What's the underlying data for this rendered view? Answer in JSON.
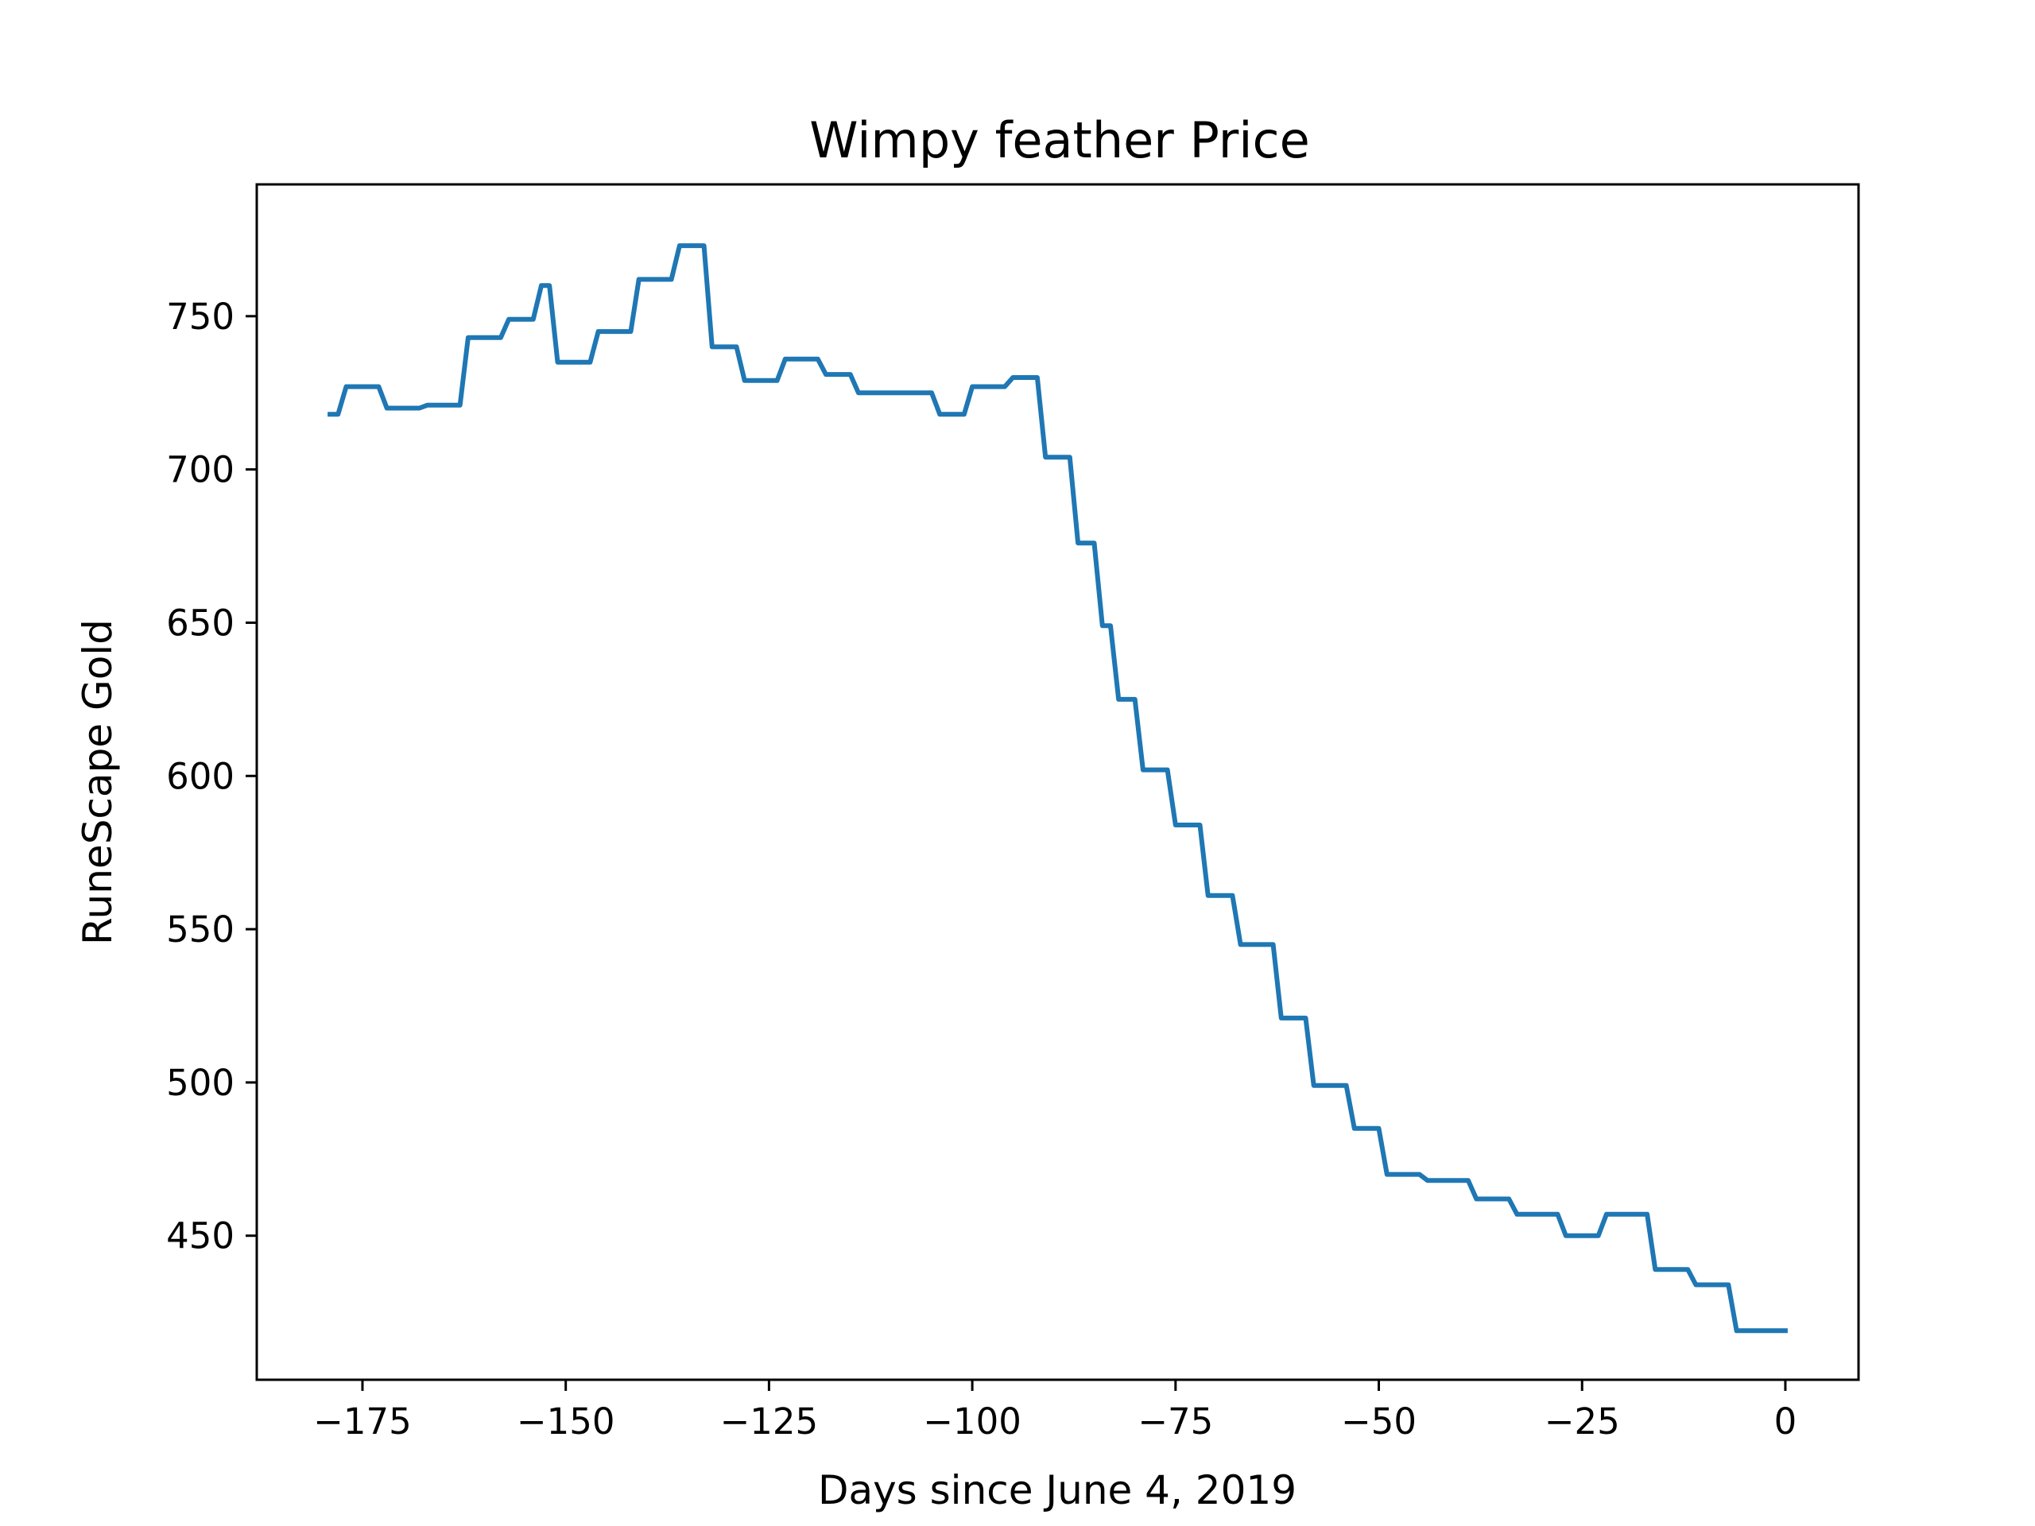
{
  "chart_data": {
    "type": "line",
    "title": "Wimpy feather Price",
    "xlabel": "Days since June 4, 2019",
    "ylabel": "RuneScape Gold",
    "xlim": [
      -188,
      9
    ],
    "ylim": [
      403,
      793
    ],
    "xticks": [
      -175,
      -150,
      -125,
      -100,
      -75,
      -50,
      -25,
      0
    ],
    "xtick_labels": [
      "−175",
      "−150",
      "−125",
      "−100",
      "−75",
      "−50",
      "−25",
      "0"
    ],
    "yticks": [
      450,
      500,
      550,
      600,
      650,
      700,
      750
    ],
    "ytick_labels": [
      "450",
      "500",
      "550",
      "600",
      "650",
      "700",
      "750"
    ],
    "grid": false,
    "legend": "none",
    "line_color": "#1f77b4",
    "series": [
      {
        "x": [
          -179,
          -178,
          -177,
          -176,
          -175,
          -174,
          -173,
          -172,
          -171,
          -170,
          -169,
          -168,
          -167,
          -166,
          -165,
          -164,
          -163,
          -162,
          -161,
          -160,
          -159,
          -158,
          -157,
          -156,
          -155,
          -154,
          -153,
          -152,
          -151,
          -150,
          -149,
          -148,
          -147,
          -146,
          -145,
          -144,
          -143,
          -142,
          -141,
          -140,
          -139,
          -138,
          -137,
          -136,
          -135,
          -134,
          -133,
          -132,
          -131,
          -130,
          -129,
          -128,
          -127,
          -126,
          -125,
          -124,
          -123,
          -122,
          -121,
          -120,
          -119,
          -118,
          -117,
          -116,
          -115,
          -114,
          -113,
          -112,
          -111,
          -110,
          -109,
          -108,
          -107,
          -106,
          -105,
          -104,
          -103,
          -102,
          -101,
          -100,
          -99,
          -98,
          -97,
          -96,
          -95,
          -94,
          -93,
          -92,
          -91,
          -90,
          -89,
          -88,
          -87,
          -86,
          -85,
          -84,
          -83,
          -82,
          -81,
          -80,
          -79,
          -78,
          -77,
          -76,
          -75,
          -74,
          -73,
          -72,
          -71,
          -70,
          -69,
          -68,
          -67,
          -66,
          -65,
          -64,
          -63,
          -62,
          -61,
          -60,
          -59,
          -58,
          -57,
          -56,
          -55,
          -54,
          -53,
          -52,
          -51,
          -50,
          -49,
          -48,
          -47,
          -46,
          -45,
          -44,
          -43,
          -42,
          -41,
          -40,
          -39,
          -38,
          -37,
          -36,
          -35,
          -34,
          -33,
          -32,
          -31,
          -30,
          -29,
          -28,
          -27,
          -26,
          -25,
          -24,
          -23,
          -22,
          -21,
          -20,
          -19,
          -18,
          -17,
          -16,
          -15,
          -14,
          -13,
          -12,
          -11,
          -10,
          -9,
          -8,
          -7,
          -6,
          -5,
          -4,
          -3,
          -2,
          -1,
          0
        ],
        "y": [
          718,
          718,
          727,
          727,
          727,
          727,
          727,
          720,
          720,
          720,
          720,
          720,
          721,
          721,
          721,
          721,
          721,
          743,
          743,
          743,
          743,
          743,
          749,
          749,
          749,
          749,
          760,
          760,
          735,
          735,
          735,
          735,
          735,
          745,
          745,
          745,
          745,
          745,
          762,
          762,
          762,
          762,
          762,
          773,
          773,
          773,
          773,
          740,
          740,
          740,
          740,
          729,
          729,
          729,
          729,
          729,
          736,
          736,
          736,
          736,
          736,
          731,
          731,
          731,
          731,
          725,
          725,
          725,
          725,
          725,
          725,
          725,
          725,
          725,
          725,
          718,
          718,
          718,
          718,
          727,
          727,
          727,
          727,
          727,
          730,
          730,
          730,
          730,
          704,
          704,
          704,
          704,
          676,
          676,
          676,
          649,
          649,
          625,
          625,
          625,
          602,
          602,
          602,
          602,
          584,
          584,
          584,
          584,
          561,
          561,
          561,
          561,
          545,
          545,
          545,
          545,
          545,
          521,
          521,
          521,
          521,
          499,
          499,
          499,
          499,
          499,
          485,
          485,
          485,
          485,
          470,
          470,
          470,
          470,
          470,
          468,
          468,
          468,
          468,
          468,
          468,
          462,
          462,
          462,
          462,
          462,
          457,
          457,
          457,
          457,
          457,
          457,
          450,
          450,
          450,
          450,
          450,
          457,
          457,
          457,
          457,
          457,
          457,
          439,
          439,
          439,
          439,
          439,
          434,
          434,
          434,
          434,
          434,
          419,
          419,
          419,
          419,
          419,
          419,
          419
        ]
      }
    ]
  }
}
